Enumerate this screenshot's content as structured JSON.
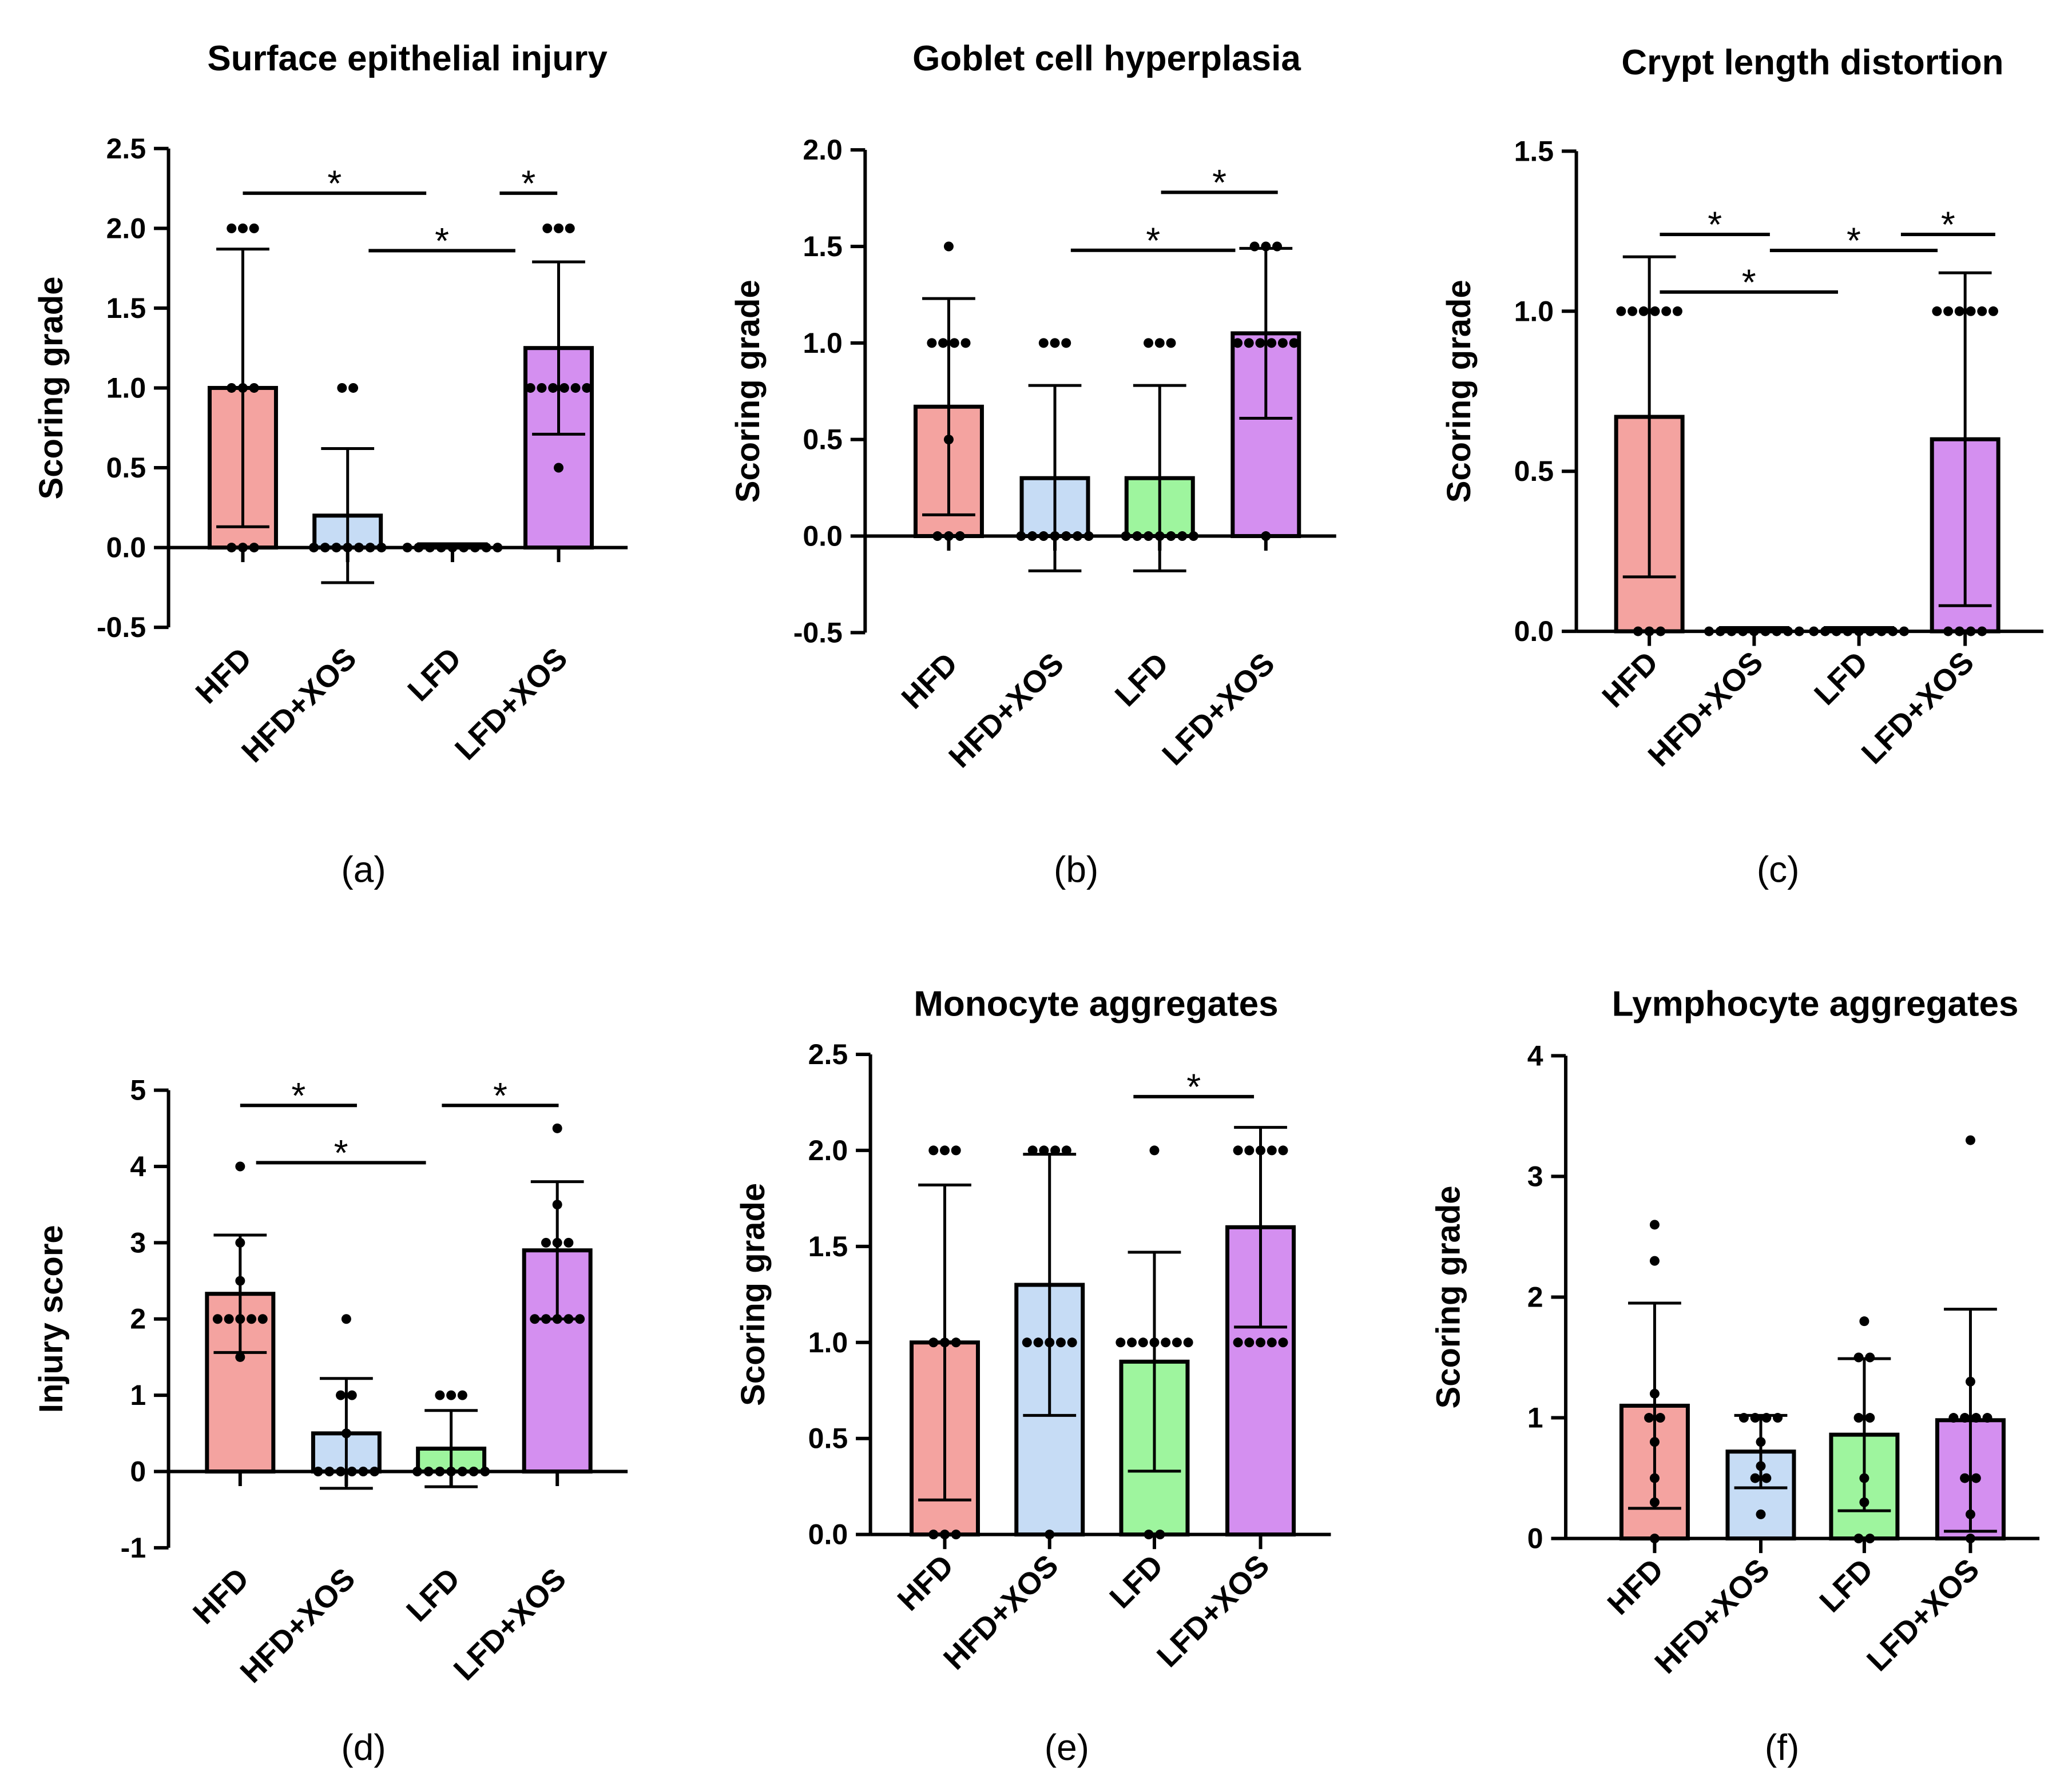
{
  "chart_data": [
    {
      "type": "bar",
      "panel": "(a)",
      "title": "Surface epithelial injury",
      "xlabel": "",
      "ylabel": "Scoring grade",
      "ylim": [
        -0.5,
        2.5
      ],
      "yticks": [
        -0.5,
        0.0,
        0.5,
        1.0,
        1.5,
        2.0,
        2.5
      ],
      "tick_decimals": 1,
      "categories": [
        "HFD",
        "HFD+XOS",
        "LFD",
        "LFD+XOS"
      ],
      "colors": [
        "#f4a3a0",
        "#c6dcf5",
        "#9ef59e",
        "#d48ff0"
      ],
      "values": [
        1.0,
        0.2,
        0.02,
        1.25
      ],
      "errors": [
        0.87,
        0.42,
        0,
        0.54
      ],
      "points": [
        [
          2,
          2,
          2,
          1,
          1,
          1,
          0,
          0,
          0
        ],
        [
          1,
          1,
          0,
          0,
          0,
          0,
          0,
          0,
          0
        ],
        [
          0,
          0,
          0,
          0,
          0,
          0,
          0,
          0,
          0
        ],
        [
          2,
          2,
          2,
          1,
          1,
          1,
          1,
          1,
          1,
          0.5
        ]
      ],
      "significance": [
        {
          "from": 0,
          "to": 1.75,
          "y": 2.22,
          "label": "*"
        },
        {
          "from": 2.45,
          "to": 3.0,
          "y": 2.22,
          "label": "*"
        },
        {
          "from": 1.2,
          "to": 2.6,
          "y": 1.86,
          "label": "*"
        }
      ]
    },
    {
      "type": "bar",
      "panel": "(b)",
      "title": "Goblet cell hyperplasia",
      "xlabel": "",
      "ylabel": "Scoring grade",
      "ylim": [
        -0.5,
        2.0
      ],
      "yticks": [
        -0.5,
        0.0,
        0.5,
        1.0,
        1.5,
        2.0
      ],
      "tick_decimals": 1,
      "categories": [
        "HFD",
        "HFD+XOS",
        "LFD",
        "LFD+XOS"
      ],
      "colors": [
        "#f4a3a0",
        "#c6dcf5",
        "#9ef59e",
        "#d48ff0"
      ],
      "values": [
        0.67,
        0.3,
        0.3,
        1.05
      ],
      "errors": [
        0.56,
        0.48,
        0.48,
        0.44
      ],
      "points": [
        [
          1.5,
          1,
          1,
          1,
          1,
          0.5,
          0,
          0,
          0
        ],
        [
          1,
          1,
          1,
          0,
          0,
          0,
          0,
          0,
          0,
          0
        ],
        [
          1,
          1,
          1,
          0,
          0,
          0,
          0,
          0,
          0,
          0
        ],
        [
          1.5,
          1.5,
          1.5,
          1,
          1,
          1,
          1,
          1,
          1,
          0
        ]
      ],
      "significance": [
        {
          "from": 2.0,
          "to": 3.1,
          "y": 1.78,
          "label": "*"
        },
        {
          "from": 1.15,
          "to": 2.7,
          "y": 1.48,
          "label": "*"
        }
      ]
    },
    {
      "type": "bar",
      "panel": "(c)",
      "title": "Crypt length distortion",
      "xlabel": "",
      "ylabel": "Scoring grade",
      "ylim": [
        0.0,
        1.5
      ],
      "yticks": [
        0.0,
        0.5,
        1.0,
        1.5
      ],
      "tick_decimals": 1,
      "categories": [
        "HFD",
        "HFD+XOS",
        "LFD",
        "LFD+XOS"
      ],
      "colors": [
        "#f4a3a0",
        "#c6dcf5",
        "#9ef59e",
        "#d48ff0"
      ],
      "values": [
        0.67,
        0.01,
        0.01,
        0.6
      ],
      "errors": [
        0.5,
        0,
        0,
        0.52
      ],
      "points": [
        [
          1,
          1,
          1,
          1,
          1,
          1,
          0,
          0,
          0
        ],
        [
          0,
          0,
          0,
          0,
          0,
          0,
          0,
          0,
          0
        ],
        [
          0,
          0,
          0,
          0,
          0,
          0,
          0,
          0,
          0
        ],
        [
          1,
          1,
          1,
          1,
          1,
          1,
          0,
          0,
          0,
          0
        ]
      ],
      "significance": [
        {
          "from": 0.1,
          "to": 1.15,
          "y": 1.24,
          "label": "*"
        },
        {
          "from": 1.15,
          "to": 2.75,
          "y": 1.19,
          "label": "*"
        },
        {
          "from": 2.4,
          "to": 3.3,
          "y": 1.24,
          "label": "*"
        },
        {
          "from": 0.1,
          "to": 1.8,
          "y": 1.06,
          "label": "*"
        }
      ]
    },
    {
      "type": "bar",
      "panel": "(d)",
      "title": "",
      "xlabel": "",
      "ylabel": "Injury score",
      "ylim": [
        -1,
        5
      ],
      "yticks": [
        -1,
        0,
        1,
        2,
        3,
        4,
        5
      ],
      "tick_decimals": 0,
      "categories": [
        "HFD",
        "HFD+XOS",
        "LFD",
        "LFD+XOS"
      ],
      "colors": [
        "#f4a3a0",
        "#c6dcf5",
        "#9ef59e",
        "#d48ff0"
      ],
      "values": [
        2.33,
        0.5,
        0.3,
        2.9
      ],
      "errors": [
        0.77,
        0.72,
        0.5,
        0.9
      ],
      "points": [
        [
          4,
          3,
          2.5,
          2,
          2,
          2,
          2,
          2,
          1.5
        ],
        [
          2,
          1,
          1,
          0.5,
          0,
          0,
          0,
          0,
          0,
          0
        ],
        [
          1,
          1,
          1,
          0,
          0,
          0,
          0,
          0,
          0,
          0
        ],
        [
          4.5,
          3.5,
          3,
          3,
          3,
          2,
          2,
          2,
          2,
          2
        ]
      ],
      "significance": [
        {
          "from": 0,
          "to": 1.1,
          "y": 4.8,
          "label": "*"
        },
        {
          "from": 1.9,
          "to": 3.0,
          "y": 4.8,
          "label": "*"
        },
        {
          "from": 0.15,
          "to": 1.75,
          "y": 4.05,
          "label": "*"
        }
      ]
    },
    {
      "type": "bar",
      "panel": "(e)",
      "title": "Monocyte aggregates",
      "xlabel": "",
      "ylabel": "Scoring grade",
      "ylim": [
        0.0,
        2.5
      ],
      "yticks": [
        0.0,
        0.5,
        1.0,
        1.5,
        2.0,
        2.5
      ],
      "tick_decimals": 1,
      "categories": [
        "HFD",
        "HFD+XOS",
        "LFD",
        "LFD+XOS"
      ],
      "colors": [
        "#f4a3a0",
        "#c6dcf5",
        "#9ef59e",
        "#d48ff0"
      ],
      "values": [
        1.0,
        1.3,
        0.9,
        1.6
      ],
      "errors": [
        0.82,
        0.68,
        0.57,
        0.52
      ],
      "points": [
        [
          2,
          2,
          2,
          1,
          1,
          1,
          0,
          0,
          0
        ],
        [
          2,
          2,
          2,
          2,
          1,
          1,
          1,
          1,
          1,
          0
        ],
        [
          2,
          1,
          1,
          1,
          1,
          1,
          1,
          1,
          0,
          0
        ],
        [
          2,
          2,
          2,
          2,
          2,
          1,
          1,
          1,
          1,
          1
        ]
      ],
      "significance": [
        {
          "from": 1.8,
          "to": 2.95,
          "y": 2.28,
          "label": "*"
        }
      ]
    },
    {
      "type": "bar",
      "panel": "(f)",
      "title": "Lymphocyte aggregates",
      "xlabel": "",
      "ylabel": "Scoring grade",
      "ylim": [
        0,
        4
      ],
      "yticks": [
        0,
        1,
        2,
        3,
        4
      ],
      "tick_decimals": 0,
      "categories": [
        "HFD",
        "HFD+XOS",
        "LFD",
        "LFD+XOS"
      ],
      "colors": [
        "#f4a3a0",
        "#c6dcf5",
        "#9ef59e",
        "#d48ff0"
      ],
      "values": [
        1.1,
        0.72,
        0.86,
        0.98
      ],
      "errors": [
        0.85,
        0.3,
        0.63,
        0.92
      ],
      "points": [
        [
          2.6,
          2.3,
          1.2,
          1.0,
          1.0,
          0.8,
          0.5,
          0.3,
          0
        ],
        [
          1.0,
          1.0,
          1.0,
          1.0,
          0.8,
          0.6,
          0.5,
          0.5,
          0.2
        ],
        [
          1.8,
          1.5,
          1.5,
          1.0,
          1.0,
          0.5,
          0.3,
          0,
          0
        ],
        [
          3.3,
          1.3,
          1.0,
          1.0,
          1.0,
          1.0,
          0.5,
          0.5,
          0.2,
          0
        ]
      ],
      "significance": []
    }
  ]
}
